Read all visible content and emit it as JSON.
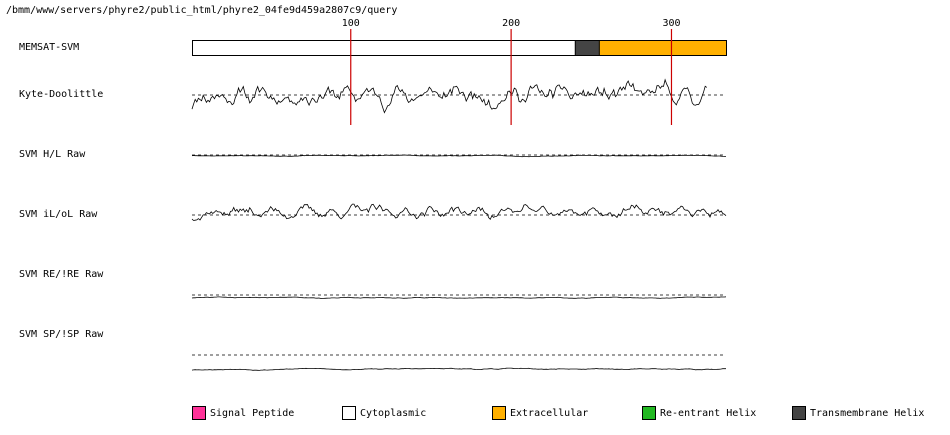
{
  "page_title": "/bmm/www/servers/phyre2/public_html/phyre2_04fe9d459a2807c9/query",
  "tracks": {
    "memsat": "MEMSAT-SVM",
    "kd": "Kyte-Doolittle",
    "hl": "SVM H/L Raw",
    "il": "SVM iL/oL Raw",
    "re": "SVM RE/!RE Raw",
    "sp": "SVM SP/!SP Raw"
  },
  "legend": [
    {
      "label": "Signal Peptide",
      "color": "#ff3399"
    },
    {
      "label": "Cytoplasmic",
      "color": "#ffffff"
    },
    {
      "label": "Extracellular",
      "color": "#ffb000"
    },
    {
      "label": "Re-entrant Helix",
      "color": "#22b822"
    },
    {
      "label": "Transmembrane Helix",
      "color": "#444444"
    }
  ],
  "chart_data": {
    "type": "line",
    "x_range": [
      1,
      334
    ],
    "ticks": [
      {
        "value": 100,
        "label": "100"
      },
      {
        "value": 200,
        "label": "200"
      },
      {
        "value": 300,
        "label": "300"
      }
    ],
    "marker_color": "#cc0000",
    "memsat_segments": [
      {
        "start": 1,
        "end": 240,
        "type": "Cytoplasmic",
        "color": "#ffffff"
      },
      {
        "start": 240,
        "end": 255,
        "type": "Transmembrane Helix",
        "color": "#444444"
      },
      {
        "start": 255,
        "end": 334,
        "type": "Extracellular",
        "color": "#ffb000"
      }
    ],
    "series": [
      {
        "key": "kd",
        "baseline": 0.0,
        "range": [
          -1.5,
          1.5
        ],
        "amplitude": 1.0,
        "smooth": 3,
        "seed": 11
      },
      {
        "key": "hl",
        "baseline": 0.0,
        "range": [
          -1.5,
          1.5
        ],
        "amplitude": 0.08,
        "smooth": 8,
        "seed": 23,
        "offset": -0.05
      },
      {
        "key": "il",
        "baseline": 0.0,
        "range": [
          -1.5,
          1.5
        ],
        "amplitude": 0.6,
        "smooth": 3,
        "seed": 37,
        "offset": 0.25
      },
      {
        "key": "re",
        "baseline": 0.0,
        "range": [
          -1.5,
          1.5
        ],
        "amplitude": 0.1,
        "smooth": 8,
        "seed": 41,
        "offset": -0.2
      },
      {
        "key": "sp",
        "baseline": 0.0,
        "range": [
          -1.5,
          1.5
        ],
        "amplitude": 0.12,
        "smooth": 8,
        "seed": 53,
        "offset": -1.05
      }
    ]
  }
}
